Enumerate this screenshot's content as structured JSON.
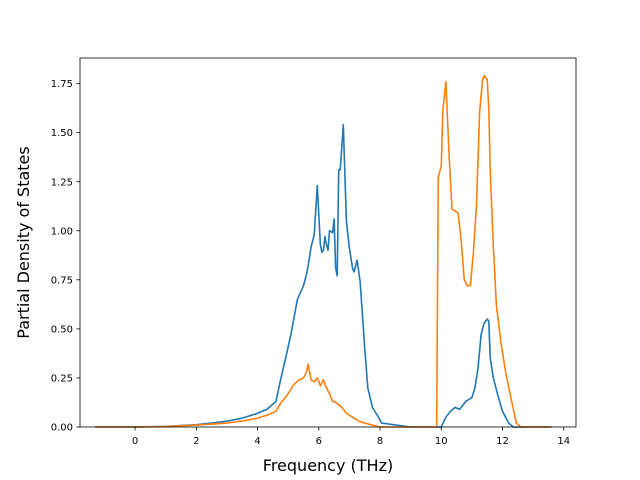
{
  "chart_data": {
    "type": "line",
    "title": "",
    "xlabel": "Frequency (THz)",
    "ylabel": "Partial Density of States",
    "xlim": [
      -1.8,
      14.4
    ],
    "ylim": [
      0.0,
      1.88
    ],
    "xticks": [
      0,
      2,
      4,
      6,
      8,
      10,
      12,
      14
    ],
    "xtick_labels": [
      "0",
      "2",
      "4",
      "6",
      "8",
      "10",
      "12",
      "14"
    ],
    "yticks": [
      0.0,
      0.25,
      0.5,
      0.75,
      1.0,
      1.25,
      1.5,
      1.75
    ],
    "ytick_labels": [
      "0.00",
      "0.25",
      "0.50",
      "0.75",
      "1.00",
      "1.25",
      "1.50",
      "1.75"
    ],
    "grid": false,
    "legend": null,
    "series": [
      {
        "color": "#1f77b4",
        "x": [
          -1.3,
          0.0,
          1.0,
          2.0,
          2.5,
          3.0,
          3.5,
          4.0,
          4.3,
          4.6,
          4.75,
          4.9,
          5.0,
          5.1,
          5.3,
          5.5,
          5.6,
          5.65,
          5.75,
          5.85,
          5.95,
          6.05,
          6.1,
          6.15,
          6.2,
          6.25,
          6.3,
          6.35,
          6.45,
          6.5,
          6.55,
          6.6,
          6.65,
          6.7,
          6.8,
          6.9,
          7.0,
          7.1,
          7.15,
          7.25,
          7.35,
          7.5,
          7.6,
          7.75,
          7.95,
          8.05,
          9.0,
          10.0,
          10.15,
          10.3,
          10.45,
          10.6,
          10.8,
          11.0,
          11.1,
          11.2,
          11.3,
          11.4,
          11.5,
          11.55,
          11.6,
          11.7,
          11.85,
          12.0,
          12.2,
          12.35,
          12.45,
          12.6,
          13.0,
          13.6
        ],
        "y": [
          0.0,
          0.0,
          0.003,
          0.012,
          0.02,
          0.03,
          0.045,
          0.07,
          0.09,
          0.13,
          0.24,
          0.34,
          0.41,
          0.48,
          0.65,
          0.72,
          0.78,
          0.82,
          0.92,
          0.98,
          1.23,
          0.93,
          0.89,
          0.9,
          0.97,
          0.93,
          0.9,
          1.0,
          0.99,
          1.06,
          0.81,
          0.77,
          1.31,
          1.31,
          1.54,
          1.05,
          0.91,
          0.81,
          0.79,
          0.85,
          0.74,
          0.4,
          0.2,
          0.1,
          0.05,
          0.02,
          0.0,
          0.0,
          0.05,
          0.08,
          0.1,
          0.09,
          0.13,
          0.15,
          0.2,
          0.3,
          0.47,
          0.53,
          0.55,
          0.54,
          0.35,
          0.25,
          0.16,
          0.08,
          0.02,
          0.0,
          0.0,
          0.0,
          0.0,
          0.0
        ]
      },
      {
        "color": "#ff7f0e",
        "x": [
          -1.3,
          0.0,
          1.0,
          2.0,
          2.5,
          3.0,
          3.5,
          4.0,
          4.3,
          4.6,
          4.75,
          4.9,
          5.0,
          5.15,
          5.35,
          5.5,
          5.6,
          5.65,
          5.75,
          5.85,
          5.95,
          6.05,
          6.15,
          6.25,
          6.35,
          6.45,
          6.5,
          6.6,
          6.75,
          6.9,
          7.1,
          7.3,
          7.5,
          7.75,
          8.0,
          9.0,
          9.7,
          9.85,
          9.9,
          10.0,
          10.05,
          10.15,
          10.25,
          10.35,
          10.45,
          10.55,
          10.65,
          10.75,
          10.85,
          10.95,
          11.05,
          11.15,
          11.25,
          11.35,
          11.4,
          11.5,
          11.55,
          11.6,
          11.7,
          11.8,
          11.95,
          12.1,
          12.3,
          12.45,
          12.6,
          13.0,
          13.6
        ],
        "y": [
          0.0,
          0.0,
          0.002,
          0.01,
          0.015,
          0.02,
          0.03,
          0.045,
          0.06,
          0.08,
          0.12,
          0.15,
          0.17,
          0.21,
          0.24,
          0.25,
          0.28,
          0.32,
          0.24,
          0.23,
          0.25,
          0.21,
          0.24,
          0.2,
          0.17,
          0.13,
          0.13,
          0.12,
          0.1,
          0.07,
          0.05,
          0.03,
          0.02,
          0.01,
          0.0,
          0.0,
          0.0,
          0.0,
          1.27,
          1.33,
          1.61,
          1.76,
          1.4,
          1.11,
          1.1,
          1.09,
          0.95,
          0.75,
          0.72,
          0.72,
          0.89,
          1.13,
          1.6,
          1.77,
          1.79,
          1.77,
          1.63,
          1.3,
          0.92,
          0.62,
          0.43,
          0.28,
          0.13,
          0.02,
          0.0,
          0.0,
          0.0
        ]
      }
    ]
  }
}
